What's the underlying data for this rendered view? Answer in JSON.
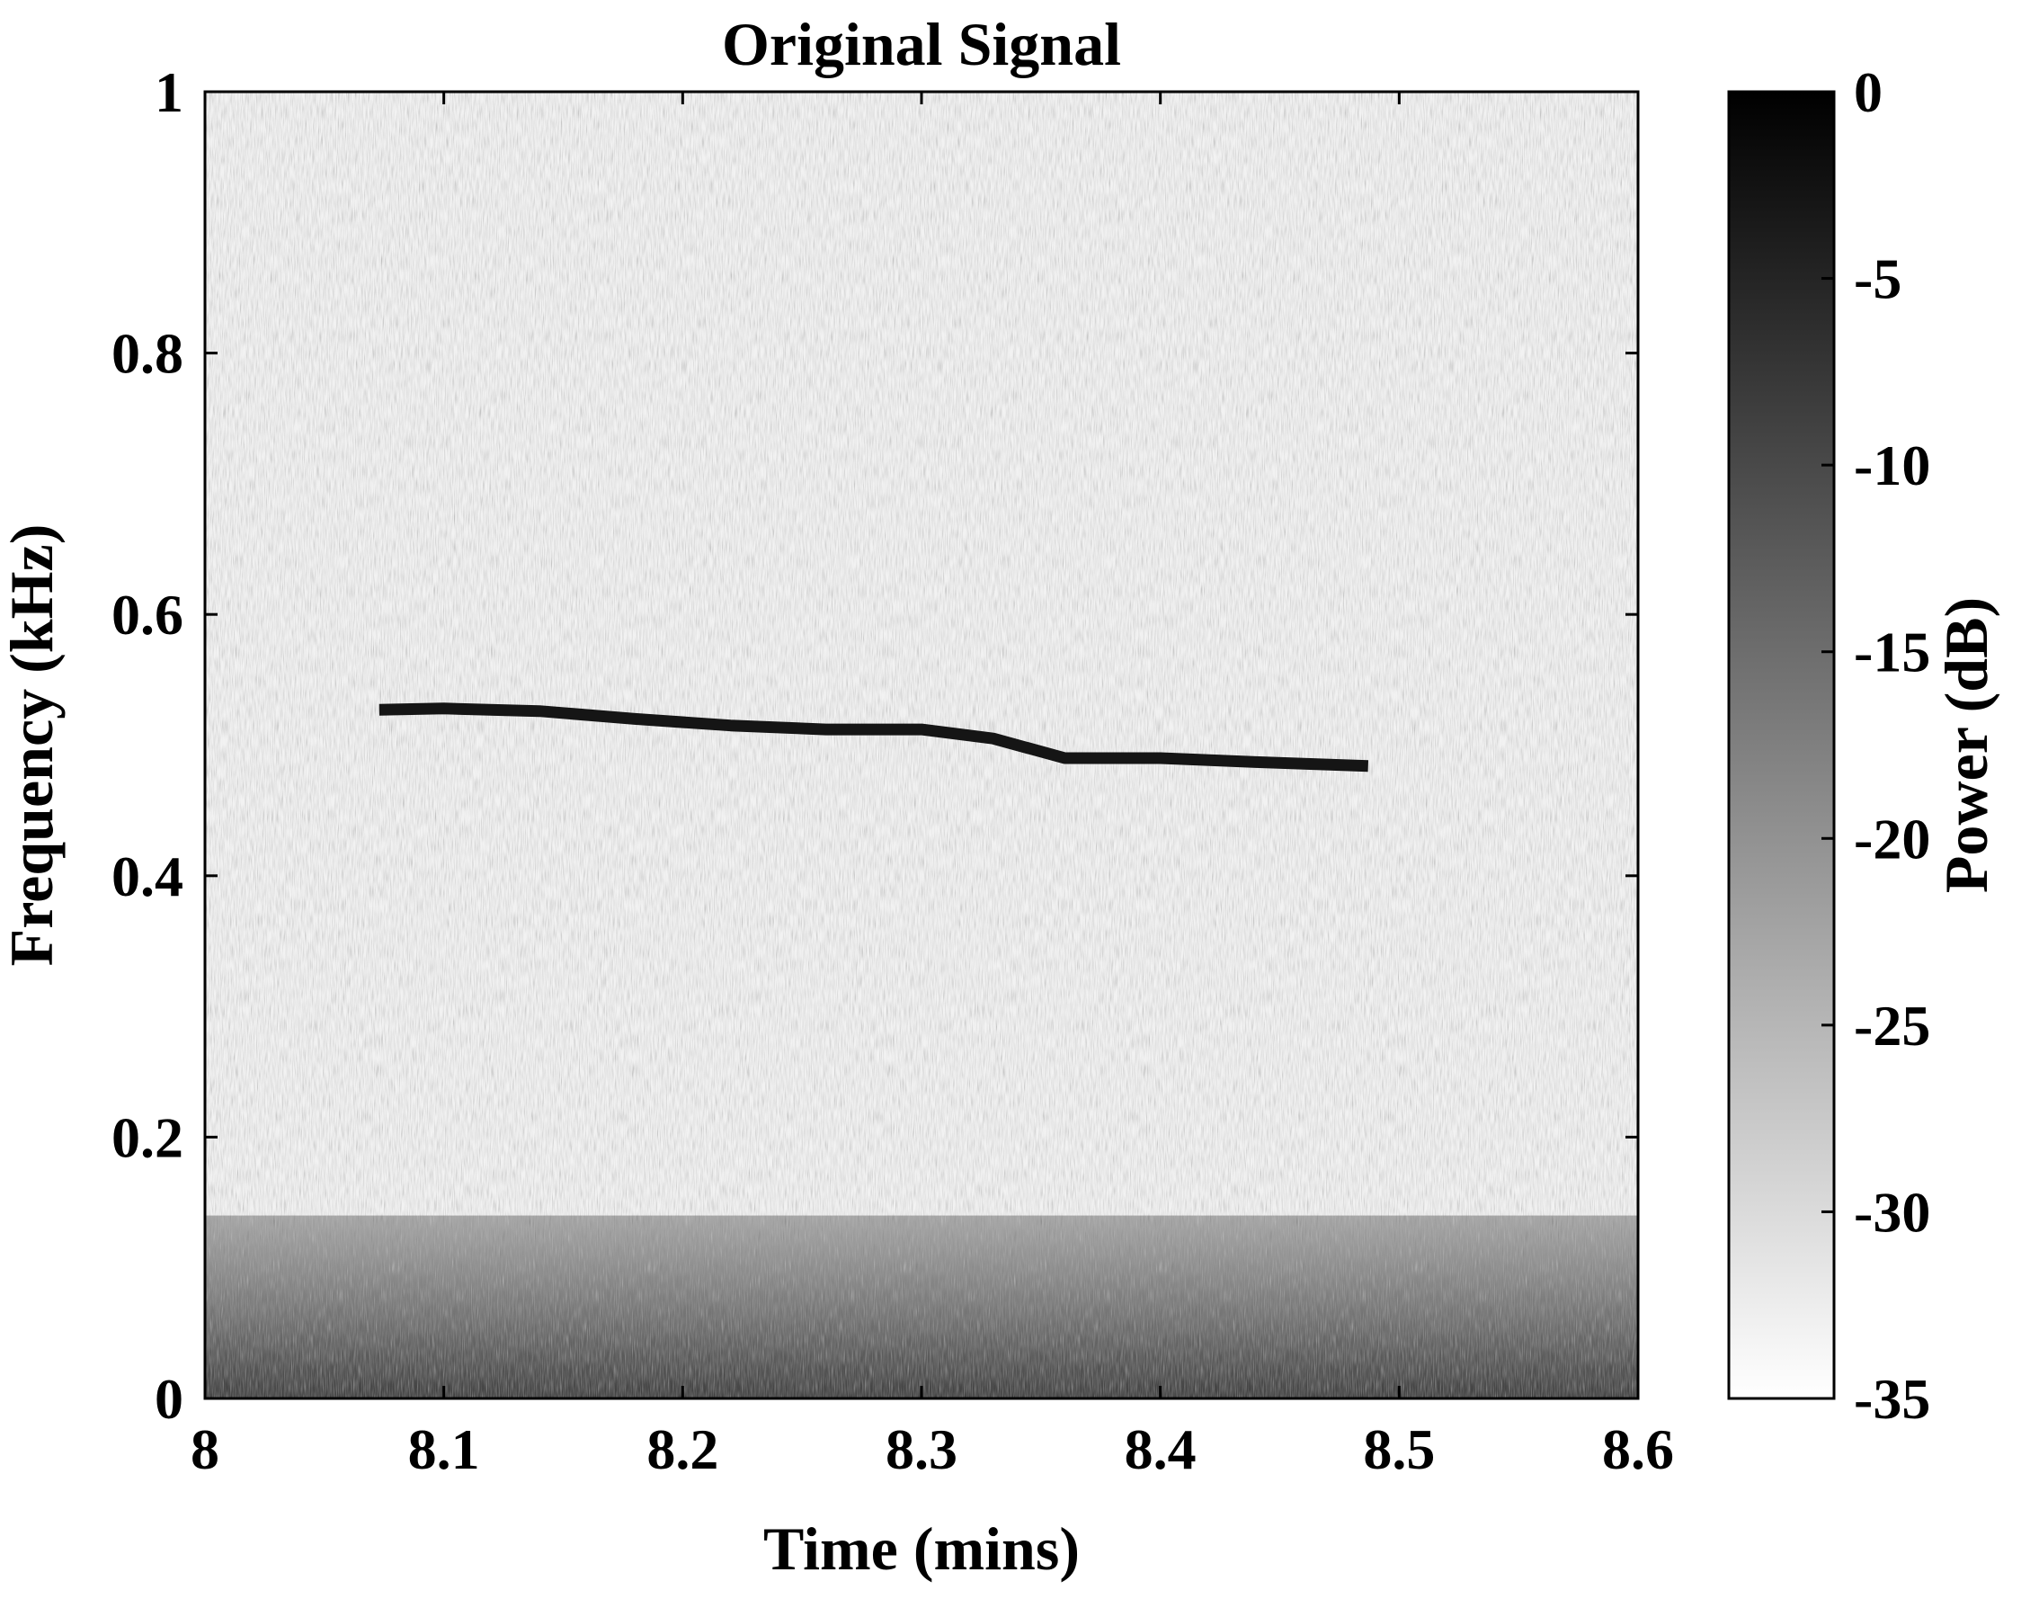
{
  "chart_data": {
    "type": "heatmap",
    "title": "Original Signal",
    "xlabel": "Time (mins)",
    "ylabel": "Frequency (kHz)",
    "xlim": [
      8,
      8.6
    ],
    "ylim": [
      0,
      1
    ],
    "xticks": [
      "8",
      "8.1",
      "8.2",
      "8.3",
      "8.4",
      "8.5",
      "8.6"
    ],
    "yticks": [
      "0",
      "0.2",
      "0.4",
      "0.6",
      "0.8",
      "1"
    ],
    "colorbar": {
      "label": "Power (dB)",
      "range": [
        -35,
        0
      ],
      "ticks": [
        "0",
        "-5",
        "-10",
        "-15",
        "-20",
        "-25",
        "-30",
        "-35"
      ],
      "colormap": "gray-reversed",
      "low_color": "#ffffff",
      "high_color": "#000000"
    },
    "tonal_line": {
      "x": [
        8.073,
        8.1,
        8.14,
        8.18,
        8.22,
        8.26,
        8.3,
        8.33,
        8.36,
        8.4,
        8.44,
        8.487
      ],
      "y": [
        0.527,
        0.528,
        0.526,
        0.52,
        0.515,
        0.512,
        0.512,
        0.505,
        0.49,
        0.49,
        0.487,
        0.484
      ],
      "power_db": -2
    },
    "noise_floor": {
      "low_band_upper_freq": 0.14,
      "low_band_power_db": -15,
      "background_power_db": -33
    },
    "grid": false
  }
}
